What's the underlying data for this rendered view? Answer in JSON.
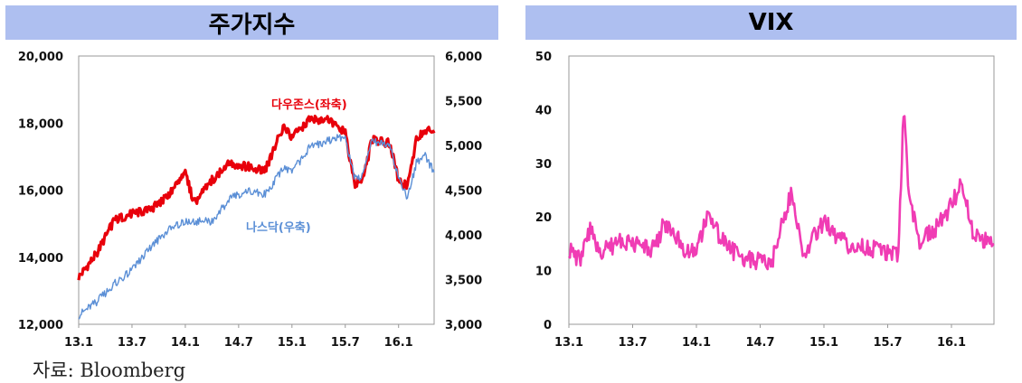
{
  "panels": {
    "left_title": "주가지수",
    "right_title": "VIX"
  },
  "source": "자료: Bloomberg",
  "chart_data": [
    {
      "type": "line",
      "title": "주가지수",
      "x_ticks": [
        "13.1",
        "13.7",
        "14.1",
        "14.7",
        "15.1",
        "15.7",
        "16.1"
      ],
      "x_range": [
        "13.1",
        "16.5"
      ],
      "y_left": {
        "range": [
          12000,
          20000
        ],
        "ticks": [
          "12,000",
          "14,000",
          "16,000",
          "18,000",
          "20,000"
        ]
      },
      "y_right": {
        "range": [
          3000,
          6000
        ],
        "ticks": [
          "3,000",
          "3,500",
          "4,000",
          "4,500",
          "5,000",
          "5,500",
          "6,000"
        ]
      },
      "grid": false,
      "x": [
        "13.1",
        "13.3",
        "13.5",
        "13.7",
        "13.9",
        "13.11",
        "14.1",
        "14.2",
        "14.4",
        "14.6",
        "14.8",
        "14.10",
        "14.12",
        "15.1",
        "15.3",
        "15.5",
        "15.7",
        "15.8",
        "15.9",
        "15.10",
        "15.12",
        "16.1",
        "16.2",
        "16.3",
        "16.4",
        "16.5"
      ],
      "series": [
        {
          "name": "다우존스(좌축)",
          "axis": "left",
          "color": "#e8000b",
          "values": [
            13400,
            14100,
            15100,
            15300,
            15400,
            15800,
            16500,
            15600,
            16300,
            16800,
            16700,
            16600,
            17900,
            17600,
            18100,
            18100,
            17700,
            16200,
            16300,
            17500,
            17400,
            16300,
            16100,
            17500,
            17800,
            17700
          ]
        },
        {
          "name": "나스닥(우축)",
          "axis": "right",
          "color": "#5b8fd6",
          "values": [
            3100,
            3250,
            3450,
            3600,
            3850,
            4050,
            4150,
            4150,
            4150,
            4400,
            4500,
            4450,
            4750,
            4700,
            4980,
            5050,
            5100,
            4650,
            4650,
            5050,
            5000,
            4650,
            4400,
            4800,
            4880,
            4700
          ]
        }
      ]
    },
    {
      "type": "line",
      "title": "VIX",
      "x_ticks": [
        "13.1",
        "13.7",
        "14.1",
        "14.7",
        "15.1",
        "15.7",
        "16.1"
      ],
      "x_range": [
        "13.1",
        "16.5"
      ],
      "y": {
        "range": [
          0,
          50
        ],
        "ticks": [
          "0",
          "10",
          "20",
          "30",
          "40",
          "50"
        ]
      },
      "grid": false,
      "x": [
        "13.1",
        "13.2",
        "13.3",
        "13.4",
        "13.6",
        "13.7",
        "13.9",
        "13.10",
        "13.12",
        "14.1",
        "14.2",
        "14.4",
        "14.6",
        "14.8",
        "14.10",
        "14.11",
        "15.1",
        "15.3",
        "15.6",
        "15.8",
        "15.8b",
        "15.9",
        "15.10",
        "15.12",
        "16.1",
        "16.2",
        "16.3",
        "16.5"
      ],
      "series": [
        {
          "name": "",
          "color": "#f03cb4",
          "values": [
            14,
            12,
            18,
            13,
            16,
            15,
            14,
            19,
            14,
            13,
            20,
            14,
            12,
            11,
            25,
            13,
            19,
            15,
            14,
            13,
            40,
            24,
            15,
            19,
            22,
            27,
            17,
            15
          ]
        }
      ]
    }
  ]
}
